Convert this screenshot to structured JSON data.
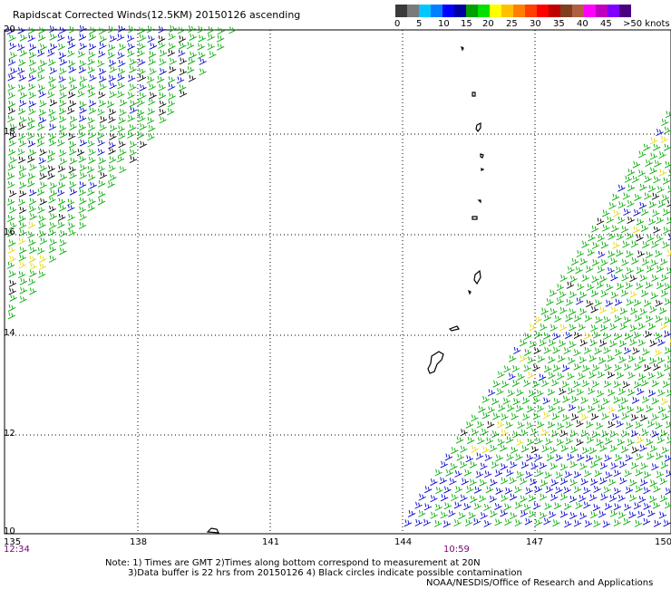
{
  "title": "Rapidscat Corrected Winds(12.5KM) 20150126 ascending",
  "legend": {
    "colors": [
      "#3a3a3a",
      "#7a7a7a",
      "#00c8ff",
      "#0080ff",
      "#0000ff",
      "#0000a0",
      "#00a000",
      "#00e000",
      "#ffff00",
      "#ffc000",
      "#ff8000",
      "#ff4000",
      "#ff0000",
      "#c00000",
      "#804020",
      "#b06040",
      "#ff00ff",
      "#c000c0",
      "#8000ff",
      "#4b0082"
    ],
    "labels": [
      "0",
      "5",
      "10",
      "15",
      "20",
      "25",
      "30",
      "35",
      "40",
      "45",
      ">50 knots"
    ]
  },
  "lat_labels": [
    "20",
    "18",
    "16",
    "14",
    "12",
    "10"
  ],
  "lon_labels": [
    "135",
    "138",
    "141",
    "144",
    "147",
    "150"
  ],
  "times": [
    "12:34",
    "10:59"
  ],
  "notes": [
    "Note: 1) Times are GMT 2)Times along bottom correspond to measurement at 20N",
    "3)Data buffer is 22 hrs from 20150126 4) Black circles indicate possible contamination",
    "NOAA/NESDIS/Office of Research and Applications"
  ],
  "map": {
    "lon_range": [
      135,
      150
    ],
    "lat_range": [
      10,
      20
    ]
  }
}
